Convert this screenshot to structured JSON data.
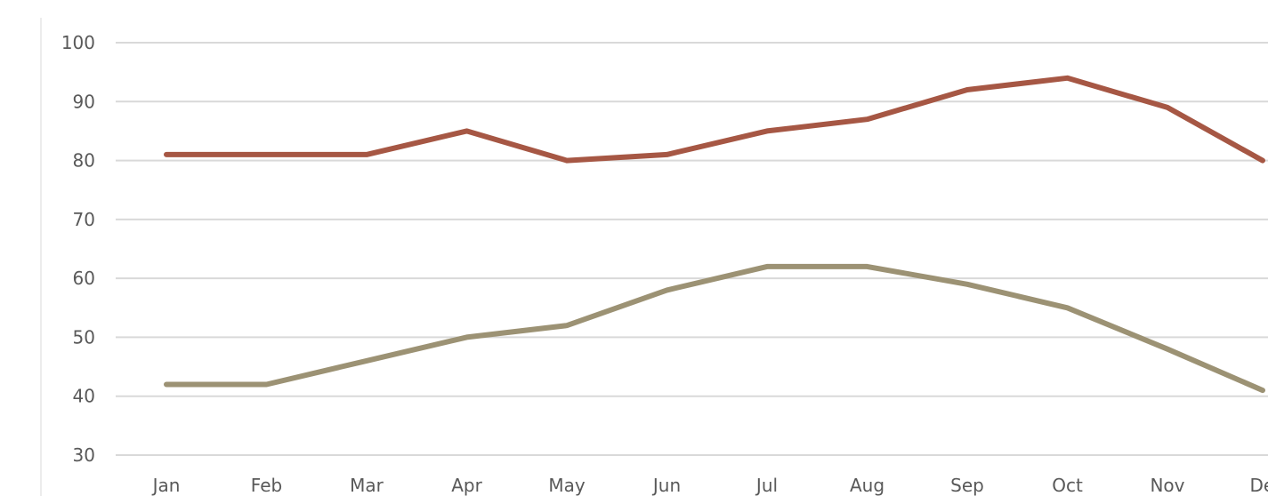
{
  "chart_data": {
    "type": "line",
    "categories": [
      "Jan",
      "Feb",
      "Mar",
      "Apr",
      "May",
      "Jun",
      "Jul",
      "Aug",
      "Sep",
      "Oct",
      "Nov",
      "Dec"
    ],
    "category_labels_shown": [
      "Jan",
      "Feb",
      "Mar",
      "Apr",
      "May",
      "Jun",
      "Jul",
      "Aug",
      "Sep",
      "Oct",
      "Nov",
      "De"
    ],
    "series": [
      {
        "color": "#a65744",
        "values": [
          81,
          81,
          81,
          85,
          80,
          81,
          85,
          87,
          92,
          94,
          89,
          80
        ]
      },
      {
        "color": "#9c9274",
        "values": [
          42,
          42,
          46,
          50,
          52,
          58,
          62,
          62,
          59,
          55,
          48,
          41
        ]
      }
    ],
    "yticks": [
      30,
      40,
      50,
      60,
      70,
      80,
      90,
      100
    ],
    "ylim": [
      30,
      100
    ],
    "grid": true,
    "title": "",
    "xlabel": "",
    "ylabel": ""
  }
}
